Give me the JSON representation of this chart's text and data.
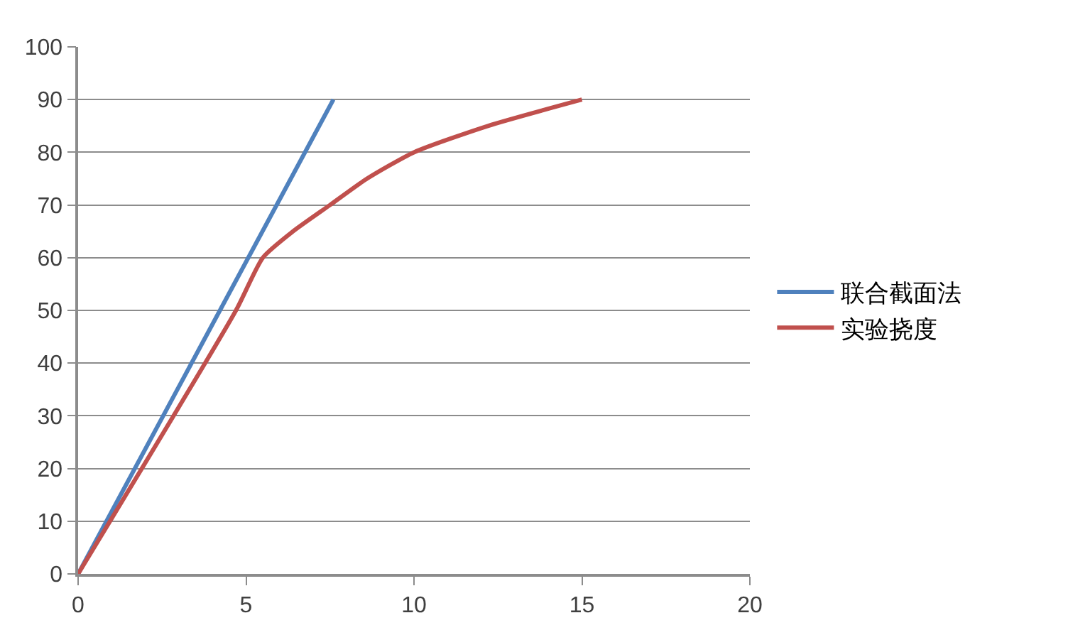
{
  "chart_data": {
    "type": "line",
    "series": [
      {
        "name": "联合截面法",
        "color": "#4f81bd",
        "x": [
          0,
          7.6
        ],
        "values": [
          0,
          90
        ]
      },
      {
        "name": "实验挠度",
        "color": "#c0504d",
        "x": [
          0,
          4.7,
          5.5,
          6.4,
          7.5,
          8.6,
          10,
          12.2,
          15
        ],
        "values": [
          0,
          50,
          60,
          65,
          70,
          75,
          80,
          85,
          90
        ]
      }
    ],
    "xlim": [
      0,
      20
    ],
    "xticks": [
      0,
      5,
      10,
      15,
      20
    ],
    "ylim": [
      0,
      100
    ],
    "yticks": [
      0,
      10,
      20,
      30,
      40,
      50,
      60,
      70,
      80,
      90,
      100
    ],
    "grid": "y",
    "legend": "right",
    "marker": "none",
    "line_style": "solid"
  }
}
